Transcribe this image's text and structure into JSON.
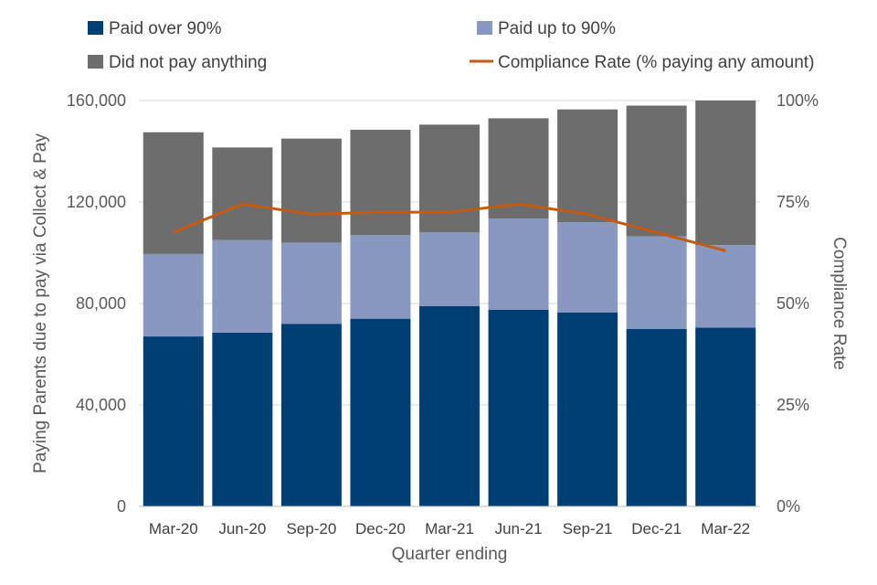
{
  "chart_data": {
    "type": "bar",
    "stacked": true,
    "categories": [
      "Mar-20",
      "Jun-20",
      "Sep-20",
      "Dec-20",
      "Mar-21",
      "Jun-21",
      "Sep-21",
      "Dec-21",
      "Mar-22"
    ],
    "series": [
      {
        "name": "Paid over 90%",
        "color": "#003f73",
        "values": [
          67000,
          68500,
          72000,
          74000,
          79000,
          77500,
          76500,
          70000,
          70500
        ]
      },
      {
        "name": "Paid up to 90%",
        "color": "#8898c0",
        "values": [
          32500,
          36500,
          32000,
          33000,
          29000,
          36000,
          35500,
          36500,
          32500
        ]
      },
      {
        "name": "Did not pay anything",
        "color": "#6d6d6d",
        "values": [
          48000,
          36500,
          41000,
          41500,
          42500,
          39500,
          44500,
          51500,
          57000
        ]
      }
    ],
    "line_series": {
      "name": "Compliance Rate (% paying any amount)",
      "color": "#c55a11",
      "axis": "right",
      "values": [
        67.5,
        74.5,
        72,
        72.5,
        72.5,
        74.5,
        72,
        67.5,
        63
      ]
    },
    "ylim": [
      0,
      160000
    ],
    "yticks": [
      "0",
      "40,000",
      "80,000",
      "120,000",
      "160,000"
    ],
    "y2lim": [
      0,
      100
    ],
    "y2ticks": [
      "0%",
      "25%",
      "50%",
      "75%",
      "100%"
    ],
    "xlabel": "Quarter ending",
    "ylabel": "Paying Parents due to pay via Collect & Pay",
    "y2label": "Compliance  Rate",
    "legend_position": "top"
  }
}
